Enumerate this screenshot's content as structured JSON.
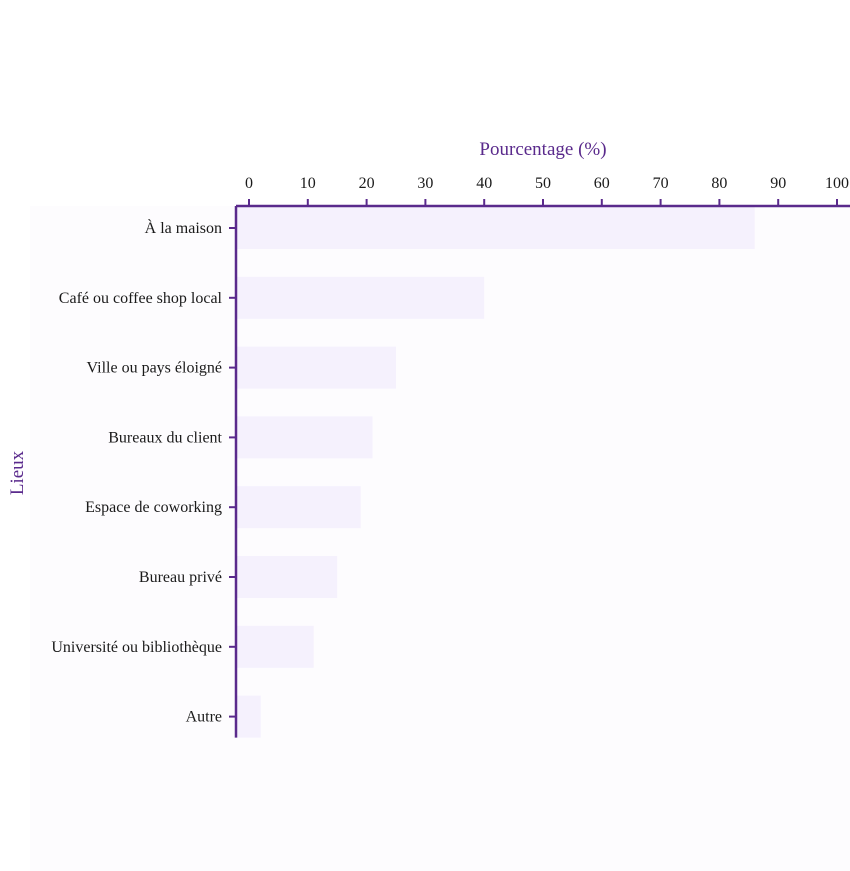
{
  "colors": {
    "axis": "#5a2a8c",
    "bar": "#f5f1fd",
    "title": "#5a2a8c"
  },
  "chart_data": {
    "type": "bar",
    "orientation": "horizontal",
    "xlabel": "Pourcentage (%)",
    "ylabel": "Lieux",
    "xlim": [
      0,
      100
    ],
    "xticks": [
      0,
      10,
      20,
      30,
      40,
      50,
      60,
      70,
      80,
      90,
      100
    ],
    "x_axis_position": "top",
    "grid": false,
    "categories": [
      "À la maison",
      "Café ou coffee shop local",
      "Ville ou pays éloigné",
      "Bureaux du client",
      "Espace de coworking",
      "Bureau privé",
      "Université ou bibliothèque",
      "Autre"
    ],
    "values": [
      86,
      40,
      25,
      21,
      19,
      15,
      11,
      2
    ]
  }
}
